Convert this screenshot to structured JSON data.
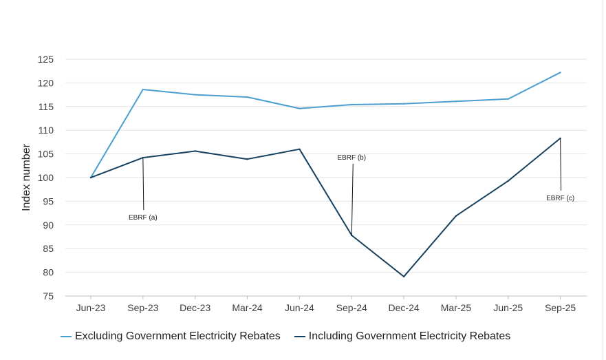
{
  "chart_data": {
    "type": "line",
    "title": "",
    "xlabel": "",
    "ylabel": "Index number",
    "categories": [
      "Jun-23",
      "Sep-23",
      "Dec-23",
      "Mar-24",
      "Jun-24",
      "Sep-24",
      "Dec-24",
      "Mar-25",
      "Jun-25",
      "Sep-25"
    ],
    "yticks": [
      75,
      80,
      85,
      90,
      95,
      100,
      105,
      110,
      115,
      120,
      125
    ],
    "ylim": [
      75,
      125
    ],
    "grid": true,
    "legend_position": "bottom-left",
    "series": [
      {
        "name": "Excluding Government Electricity Rebates",
        "color": "#4a9fd0",
        "values": [
          100,
          118.6,
          117.5,
          117.0,
          114.6,
          115.4,
          115.6,
          116.1,
          116.6,
          122.2
        ]
      },
      {
        "name": "Including Government Electricity Rebates",
        "color": "#16405f",
        "values": [
          100,
          104.2,
          105.6,
          103.9,
          106.0,
          87.8,
          79.1,
          91.9,
          99.3,
          108.3
        ]
      }
    ],
    "annotations": [
      {
        "label": "EBRF (a)",
        "category": "Sep-23",
        "series": 1,
        "offset": "below"
      },
      {
        "label": "EBRF (b)",
        "category": "Sep-24",
        "series": 1,
        "offset": "above"
      },
      {
        "label": "EBRF (c)",
        "category": "Sep-25",
        "series": 1,
        "offset": "below"
      }
    ]
  }
}
